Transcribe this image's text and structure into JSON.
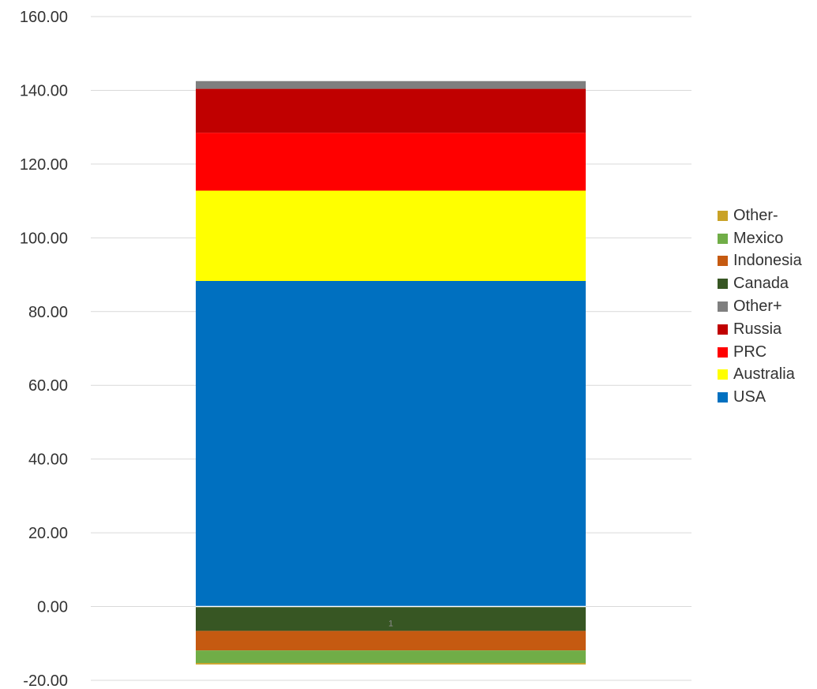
{
  "chart_data": {
    "type": "bar",
    "stacked": true,
    "categories": [
      "1"
    ],
    "ylim": [
      -20,
      160
    ],
    "y_ticks": [
      "-20.00",
      "0.00",
      "20.00",
      "40.00",
      "60.00",
      "80.00",
      "100.00",
      "120.00",
      "140.00",
      "160.00"
    ],
    "grid": true,
    "legend_placement": "right",
    "series": [
      {
        "name": "USA",
        "values": [
          88.3
        ],
        "color": "#0070c0"
      },
      {
        "name": "Australia",
        "values": [
          24.5
        ],
        "color": "#ffff00"
      },
      {
        "name": "PRC",
        "values": [
          15.7
        ],
        "color": "#ff0000"
      },
      {
        "name": "Russia",
        "values": [
          11.9
        ],
        "color": "#c00000"
      },
      {
        "name": "Other+",
        "values": [
          2.1
        ],
        "color": "#7f7f7f"
      },
      {
        "name": "Canada",
        "values": [
          -6.6
        ],
        "color": "#375623"
      },
      {
        "name": "Indonesia",
        "values": [
          -5.3
        ],
        "color": "#c55a11"
      },
      {
        "name": "Mexico",
        "values": [
          -3.4
        ],
        "color": "#70ad47"
      },
      {
        "name": "Other-",
        "values": [
          -0.4
        ],
        "color": "#c9a227"
      }
    ],
    "legend_order": [
      "Other-",
      "Mexico",
      "Indonesia",
      "Canada",
      "Other+",
      "Russia",
      "PRC",
      "Australia",
      "USA"
    ]
  }
}
